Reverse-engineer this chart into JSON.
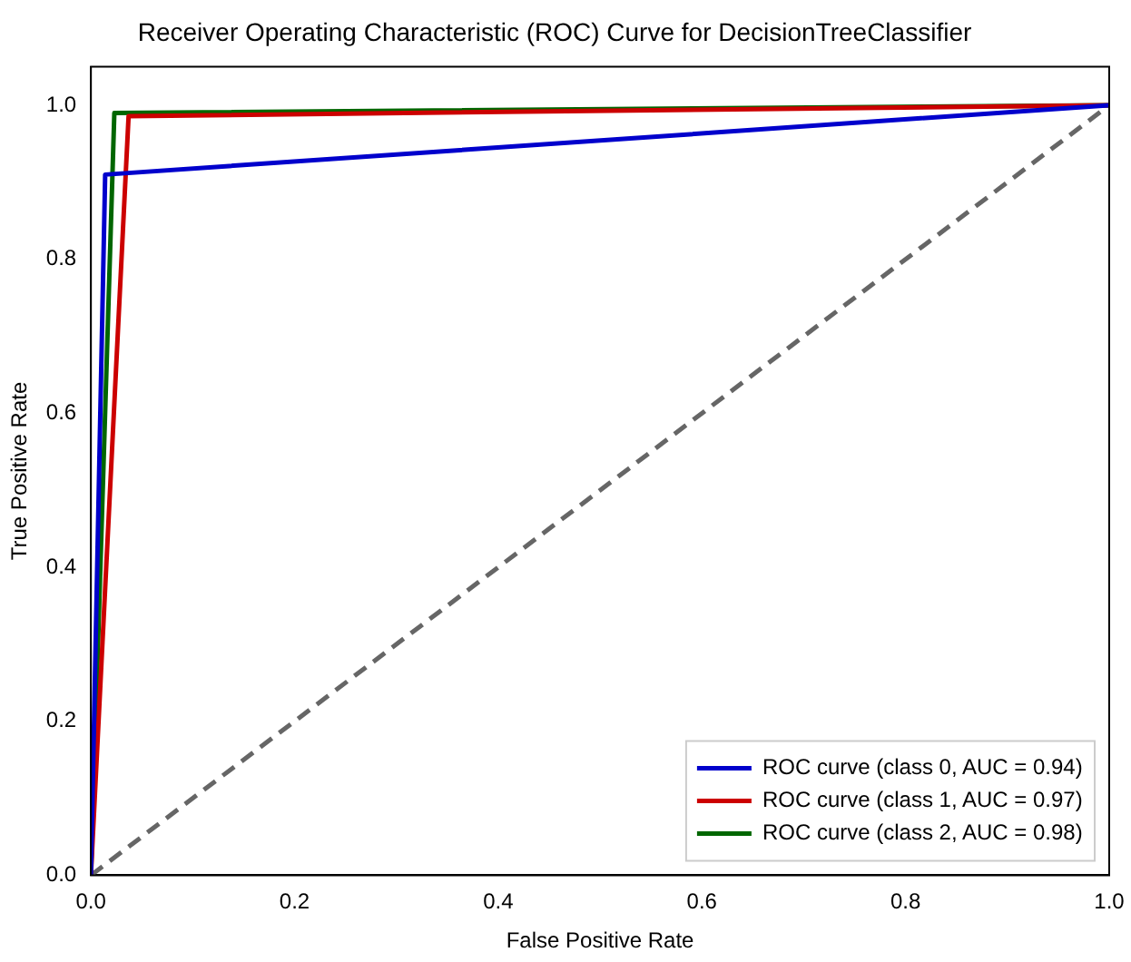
{
  "chart_data": {
    "type": "line",
    "title": "Receiver Operating Characteristic (ROC) Curve for DecisionTreeClassifier",
    "xlabel": "False Positive Rate",
    "ylabel": "True Positive Rate",
    "xlim": [
      0,
      1
    ],
    "ylim": [
      0,
      1.05
    ],
    "xticks": [
      {
        "value": 0,
        "label": "0.0"
      },
      {
        "value": 0.2,
        "label": "0.2"
      },
      {
        "value": 0.4,
        "label": "0.4"
      },
      {
        "value": 0.6,
        "label": "0.6"
      },
      {
        "value": 0.8,
        "label": "0.8"
      },
      {
        "value": 1,
        "label": "1.0"
      }
    ],
    "yticks": [
      {
        "value": 0,
        "label": "0.0"
      },
      {
        "value": 0.2,
        "label": "0.2"
      },
      {
        "value": 0.4,
        "label": "0.4"
      },
      {
        "value": 0.6,
        "label": "0.6"
      },
      {
        "value": 0.8,
        "label": "0.8"
      },
      {
        "value": 1,
        "label": "1.0"
      }
    ],
    "grid": false,
    "legend": "bottom right",
    "marker": "none",
    "series": [
      {
        "name": "ROC curve (class 0, AUC = 0.94)",
        "color": "#0000cc",
        "x": [
          0,
          0.014,
          1
        ],
        "values": [
          0,
          0.91,
          1
        ]
      },
      {
        "name": "ROC curve (class 1, AUC = 0.97)",
        "color": "#cc0000",
        "x": [
          0,
          0.037,
          1
        ],
        "values": [
          0,
          0.986,
          1
        ]
      },
      {
        "name": "ROC curve (class 2, AUC = 0.98)",
        "color": "#006600",
        "x": [
          0,
          0.023,
          1
        ],
        "values": [
          0,
          0.99,
          1
        ]
      },
      {
        "color": "#666666",
        "line_style": "dashed",
        "x": [
          0,
          1
        ],
        "values": [
          0,
          1
        ]
      }
    ]
  }
}
